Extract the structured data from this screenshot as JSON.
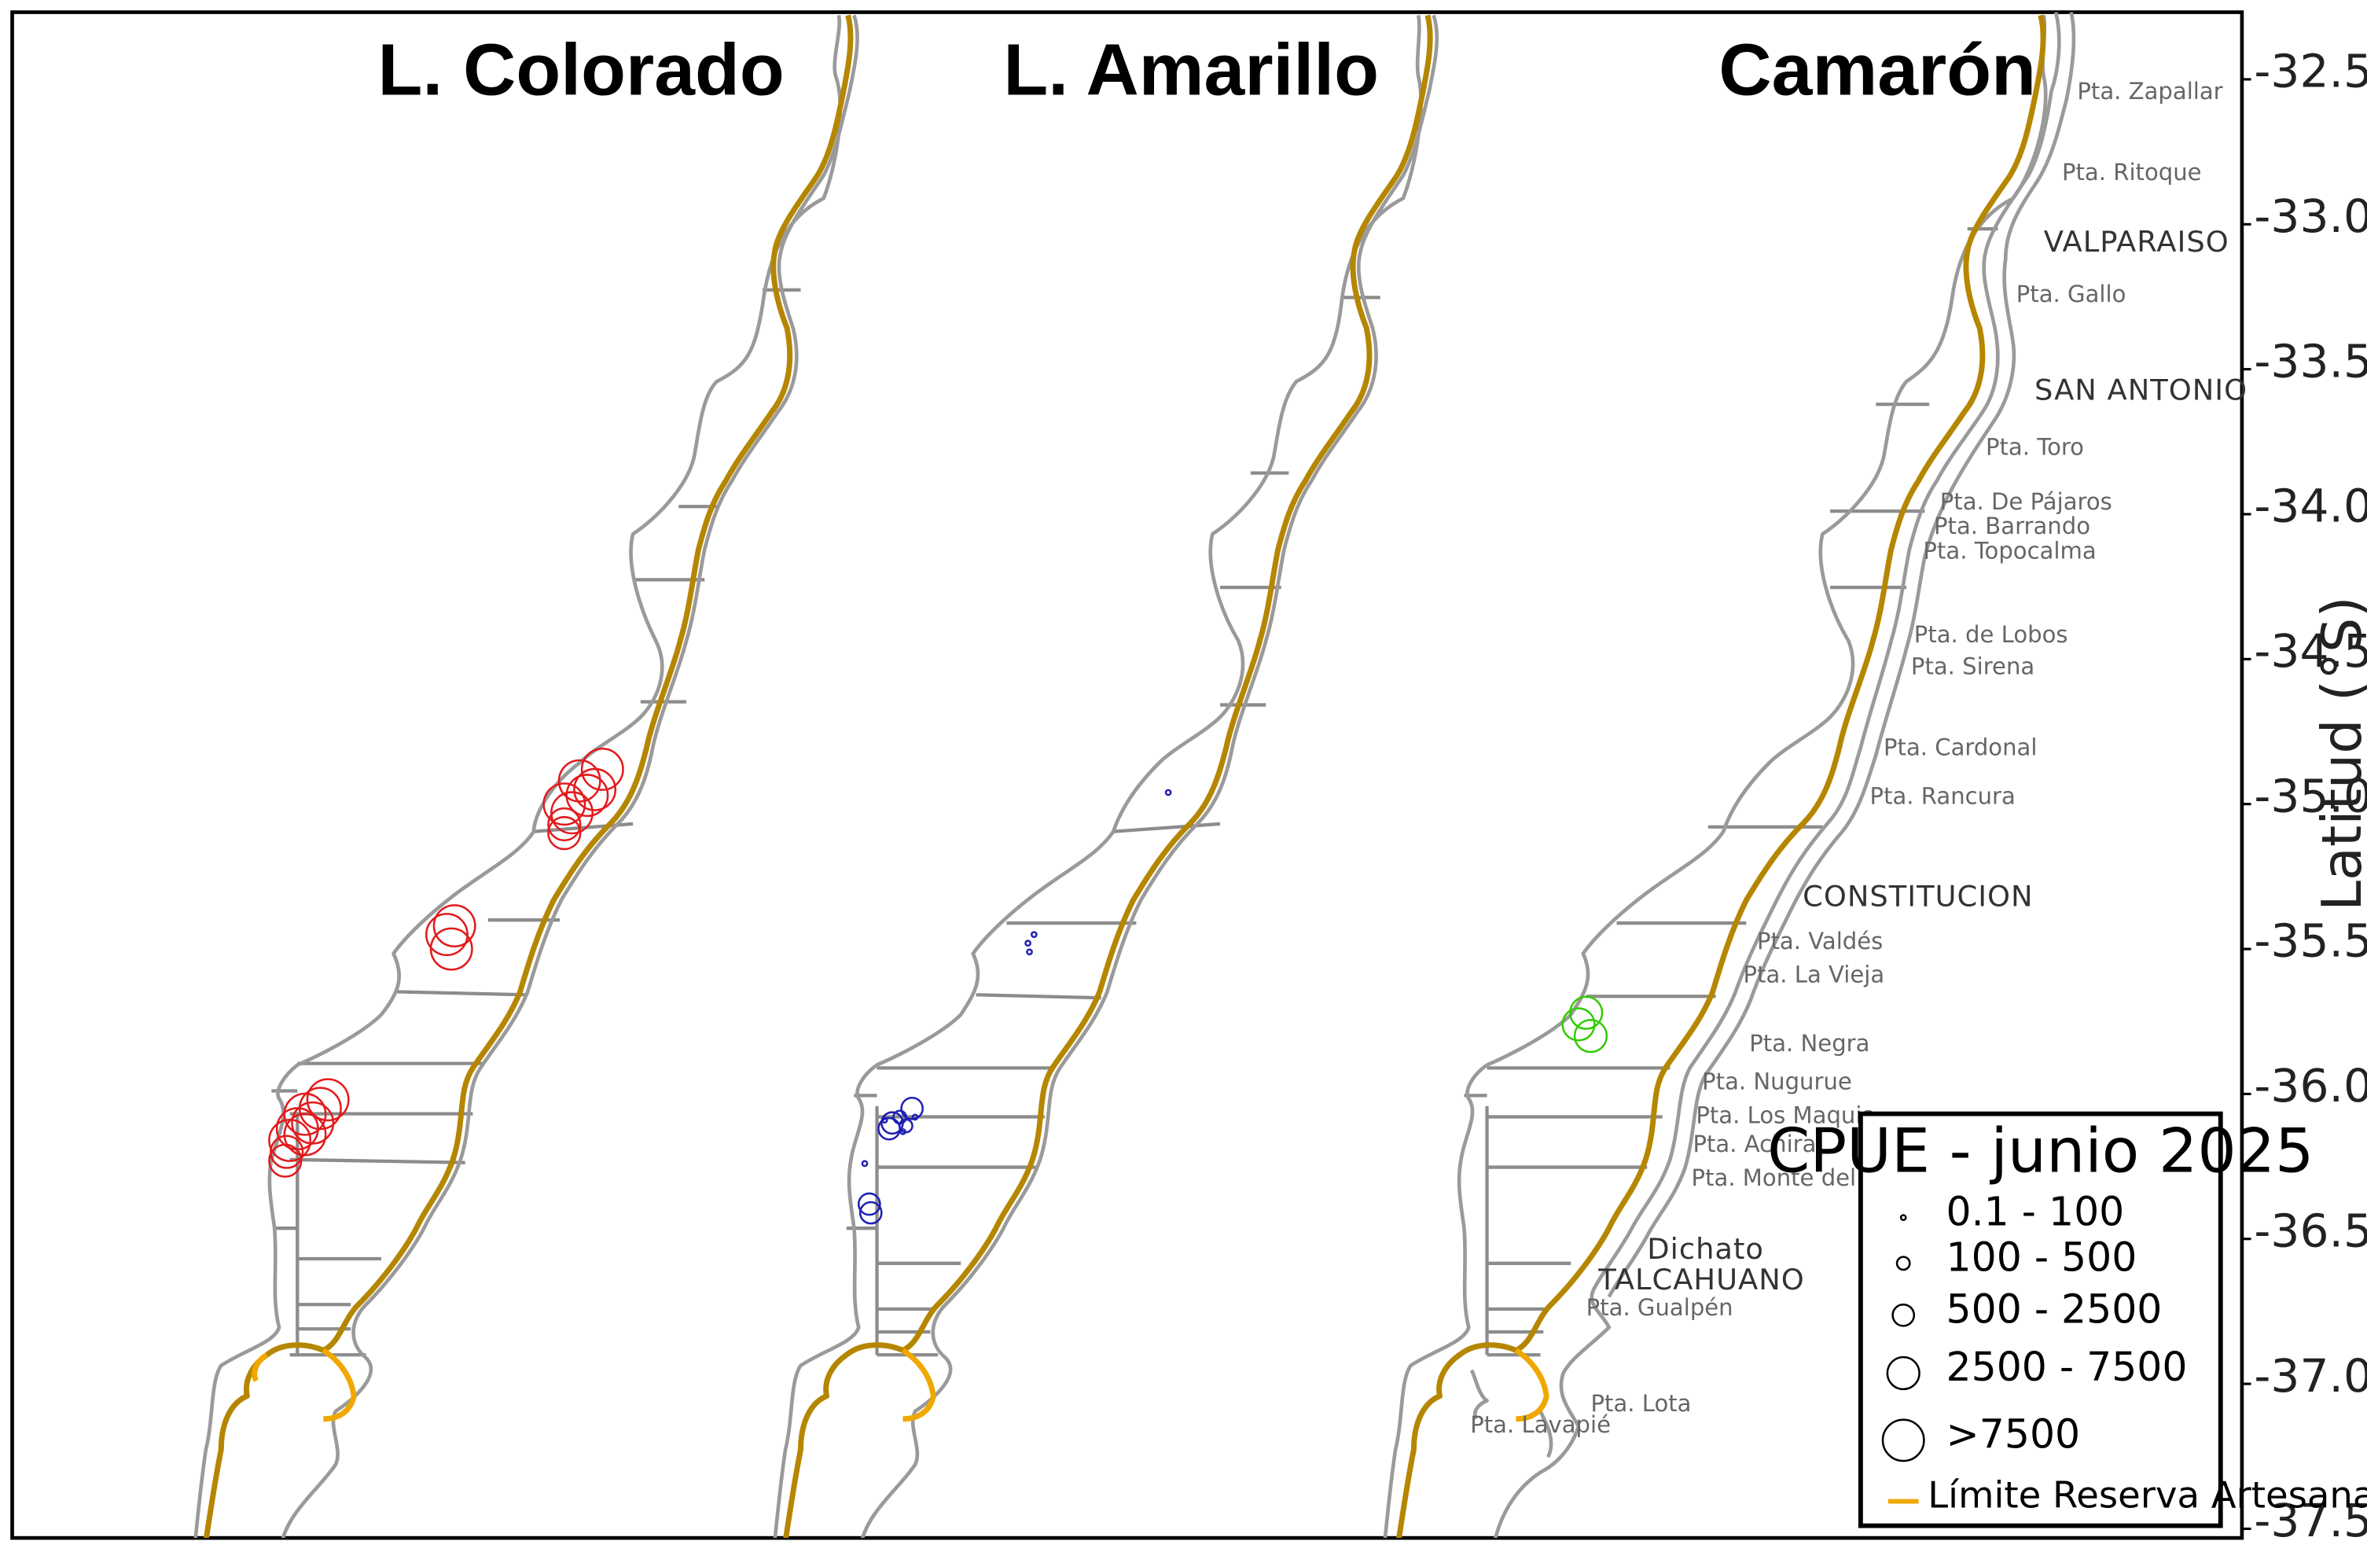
{
  "panels": [
    {
      "title": "L. Colorado",
      "color": "#e31a1c"
    },
    {
      "title": "L. Amarillo",
      "color": "#1f1fb4"
    },
    {
      "title": "Camarón",
      "color": "#33cc00"
    }
  ],
  "axis": {
    "title": "Latitud (°S)",
    "ticks": [
      "-32.5",
      "-33.0",
      "-33.5",
      "-34.0",
      "-34.5",
      "-35.0",
      "-35.5",
      "-36.0",
      "-36.5",
      "-37.0",
      "-37.5"
    ]
  },
  "places": {
    "zapallar": "Pta. Zapallar",
    "ritoque": "Pta. Ritoque",
    "valparaiso": "VALPARAISO",
    "gallo": "Pta. Gallo",
    "san_antonio": "SAN ANTONIO",
    "toro": "Pta. Toro",
    "pajaros": "Pta. De Pájaros",
    "barrando": "Pta. Barrando",
    "topocalma": "Pta. Topocalma",
    "lobos": "Pta. de Lobos",
    "sirena": "Pta. Sirena",
    "cardonal": "Pta. Cardonal",
    "rancura": "Pta. Rancura",
    "constitucion": "CONSTITUCION",
    "valdes": "Pta. Valdés",
    "la_vieja": "Pta. La Vieja",
    "negra": "Pta. Negra",
    "nugurue": "Pta. Nugurue",
    "los_maquis": "Pta. Los Maquis",
    "achira": "Pta. Achira",
    "monte_zorro": "Pta. Monte del Zorro",
    "dichato": "Dichato",
    "talcahuano": "TALCAHUANO",
    "gualpen": "Pta. Gualpén",
    "lota": "Pta. Lota",
    "lavapie": "Pta. Lavapié"
  },
  "legend": {
    "title": "CPUE - junio 2025",
    "classes": [
      "0.1 - 100",
      "100 - 500",
      "500 - 2500",
      "2500 - 7500",
      ">7500"
    ],
    "limit_label": "Límite Reserva Artesanal",
    "limit_color": "#f0a800"
  },
  "points": {
    "colorado": [
      {
        "lat": -34.88,
        "x": 0.395,
        "cls": 5
      },
      {
        "lat": -34.92,
        "x": 0.38,
        "cls": 5
      },
      {
        "lat": -34.95,
        "x": 0.39,
        "cls": 5
      },
      {
        "lat": -34.97,
        "x": 0.385,
        "cls": 5
      },
      {
        "lat": -35.0,
        "x": 0.37,
        "cls": 5
      },
      {
        "lat": -35.03,
        "x": 0.375,
        "cls": 5
      },
      {
        "lat": -35.07,
        "x": 0.37,
        "cls": 4
      },
      {
        "lat": -35.1,
        "x": 0.37,
        "cls": 4
      },
      {
        "lat": -35.42,
        "x": 0.298,
        "cls": 5
      },
      {
        "lat": -35.45,
        "x": 0.293,
        "cls": 5
      },
      {
        "lat": -35.5,
        "x": 0.296,
        "cls": 5
      },
      {
        "lat": -36.02,
        "x": 0.215,
        "cls": 5
      },
      {
        "lat": -36.05,
        "x": 0.21,
        "cls": 5
      },
      {
        "lat": -36.07,
        "x": 0.2,
        "cls": 5
      },
      {
        "lat": -36.1,
        "x": 0.205,
        "cls": 5
      },
      {
        "lat": -36.12,
        "x": 0.195,
        "cls": 5
      },
      {
        "lat": -36.14,
        "x": 0.2,
        "cls": 5
      },
      {
        "lat": -36.16,
        "x": 0.19,
        "cls": 5
      },
      {
        "lat": -36.2,
        "x": 0.188,
        "cls": 4
      },
      {
        "lat": -36.23,
        "x": 0.187,
        "cls": 4
      }
    ],
    "amarillo": [
      {
        "lat": -34.96,
        "x": 0.766,
        "cls": 1
      },
      {
        "lat": -35.45,
        "x": 0.678,
        "cls": 1
      },
      {
        "lat": -35.48,
        "x": 0.674,
        "cls": 1
      },
      {
        "lat": -35.51,
        "x": 0.675,
        "cls": 1
      },
      {
        "lat": -36.05,
        "x": 0.598,
        "cls": 3
      },
      {
        "lat": -36.08,
        "x": 0.59,
        "cls": 2
      },
      {
        "lat": -36.1,
        "x": 0.585,
        "cls": 3
      },
      {
        "lat": -36.09,
        "x": 0.58,
        "cls": 1
      },
      {
        "lat": -36.12,
        "x": 0.583,
        "cls": 3
      },
      {
        "lat": -36.11,
        "x": 0.594,
        "cls": 2
      },
      {
        "lat": -36.08,
        "x": 0.6,
        "cls": 1
      },
      {
        "lat": -36.13,
        "x": 0.592,
        "cls": 1
      },
      {
        "lat": -36.24,
        "x": 0.567,
        "cls": 1
      },
      {
        "lat": -36.38,
        "x": 0.57,
        "cls": 3
      },
      {
        "lat": -36.41,
        "x": 0.571,
        "cls": 3
      }
    ],
    "camaron": [
      {
        "lat": -35.72,
        "x": 1.04,
        "cls": 4
      },
      {
        "lat": -35.76,
        "x": 1.035,
        "cls": 4
      },
      {
        "lat": -35.8,
        "x": 1.043,
        "cls": 4
      }
    ]
  }
}
